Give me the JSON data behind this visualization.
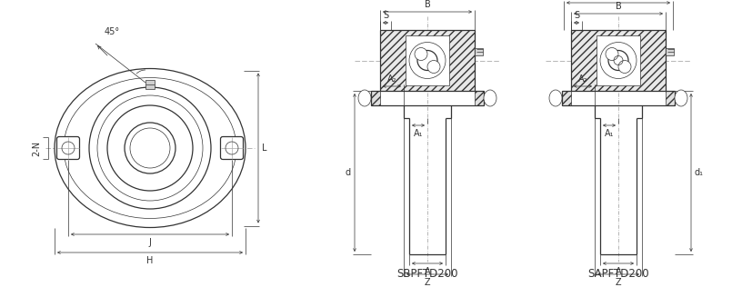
{
  "bg_color": "#ffffff",
  "line_color": "#333333",
  "lw_main": 0.9,
  "lw_thin": 0.5,
  "lw_dim": 0.5,
  "label_fontsize": 7.0,
  "title_fontsize": 8.5,
  "fig_width": 8.16,
  "fig_height": 3.38,
  "label_1": "SBPFTD200",
  "label_2": "SAPFTD200",
  "angle_label": "45°"
}
